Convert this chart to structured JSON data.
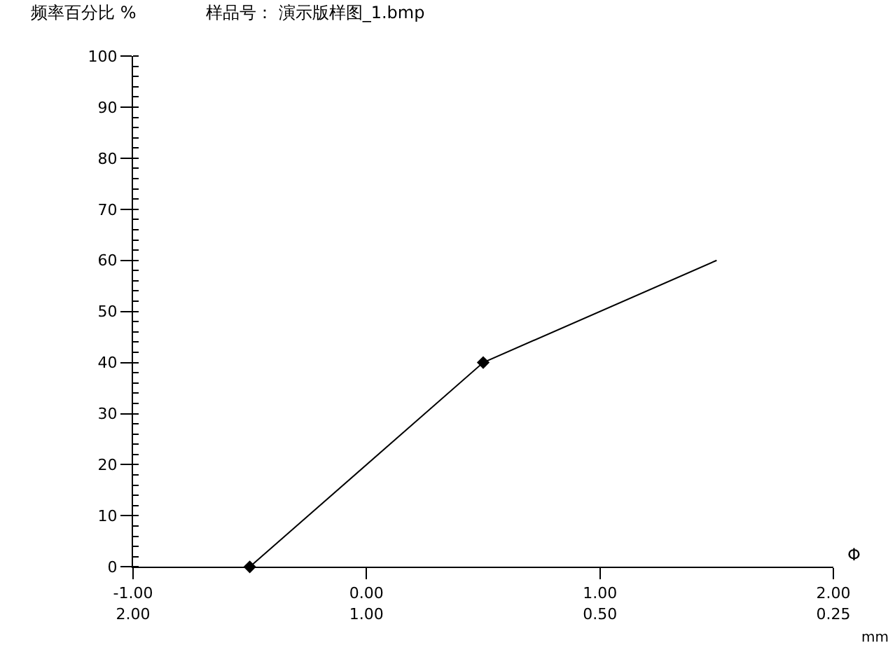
{
  "chart_data": {
    "type": "line",
    "title": "样品号： 演示版样图_1.bmp",
    "ylabel": "频率百分比 %",
    "xlabel": "Φ",
    "x2label": "mm",
    "series": [
      {
        "color": "#000000",
        "x": [
          -0.5,
          0.5,
          1.5
        ],
        "values": [
          0,
          40,
          60
        ],
        "marker": "none"
      },
      {
        "type": "scatter",
        "color": "#000000",
        "x": [
          -0.5,
          0.5
        ],
        "values": [
          0,
          40
        ],
        "marker": "diamond"
      }
    ],
    "xlim": [
      -1,
      2
    ],
    "xticks": [
      {
        "value": -1,
        "label": "-1.00"
      },
      {
        "value": 0,
        "label": "0.00"
      },
      {
        "value": 1,
        "label": "1.00"
      },
      {
        "value": 2,
        "label": "2.00"
      }
    ],
    "x2lim": [
      2,
      0.25
    ],
    "x2ticks": [
      {
        "value": 2,
        "label": "2.00"
      },
      {
        "value": 1,
        "label": "1.00"
      },
      {
        "value": 0.5,
        "label": "0.50"
      },
      {
        "value": 0.25,
        "label": "0.25"
      }
    ],
    "ylim": [
      0,
      100
    ],
    "yticks": [
      0,
      10,
      20,
      30,
      40,
      50,
      60,
      70,
      80,
      90,
      100
    ],
    "log": "x2"
  }
}
